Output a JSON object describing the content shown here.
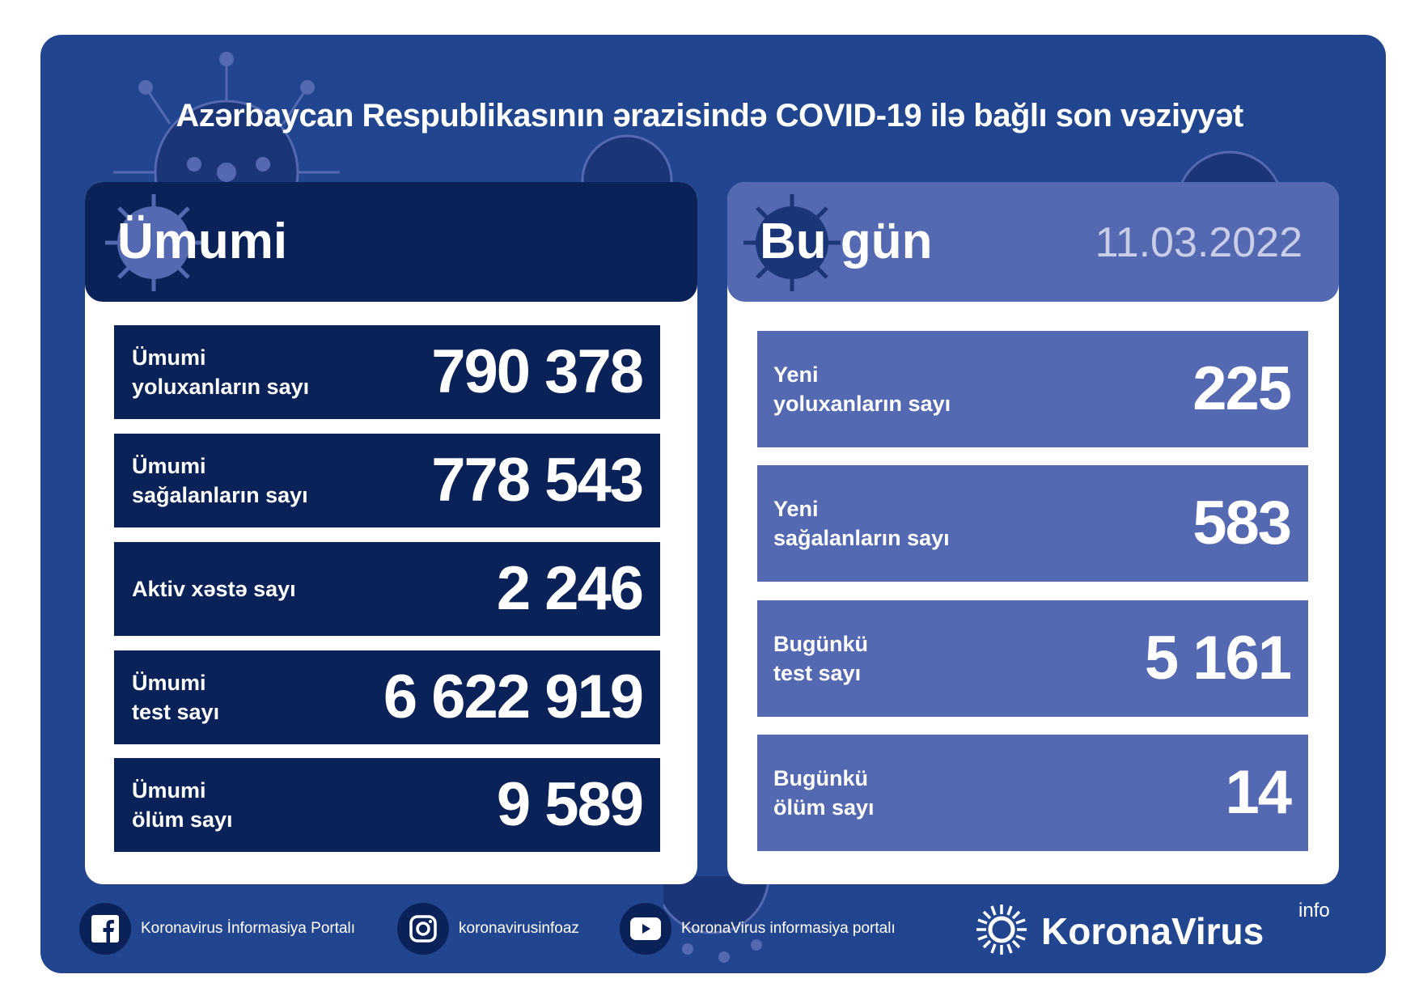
{
  "title": "Azərbaycan Respublikasının ərazisində COVID-19 ilə bağlı son vəziyyət",
  "colors": {
    "background": "#21468f",
    "dark_panel": "#0b2259",
    "light_panel": "#5568b2",
    "date": "#c9cde6"
  },
  "total": {
    "header": "Ümumi",
    "rows": [
      {
        "label_1": "Ümumi",
        "label_2": "yoluxanların sayı",
        "value": "790 378"
      },
      {
        "label_1": "Ümumi",
        "label_2": "sağalanların sayı",
        "value": "778 543"
      },
      {
        "label_1": "Aktiv xəstə sayı",
        "label_2": "",
        "value": "2 246"
      },
      {
        "label_1": "Ümumi",
        "label_2": "test sayı",
        "value": "6 622 919"
      },
      {
        "label_1": "Ümumi",
        "label_2": "ölüm sayı",
        "value": "9 589"
      }
    ]
  },
  "today": {
    "header": "Bu gün",
    "date": "11.03.2022",
    "rows": [
      {
        "label_1": "Yeni",
        "label_2": "yoluxanların sayı",
        "value": "225"
      },
      {
        "label_1": "Yeni",
        "label_2": "sağalanların sayı",
        "value": "583"
      },
      {
        "label_1": "Bugünkü",
        "label_2": "test sayı",
        "value": "5 161"
      },
      {
        "label_1": "Bugünkü",
        "label_2": "ölüm sayı",
        "value": "14"
      }
    ]
  },
  "footer": {
    "facebook": "Koronavirus İnformasiya Portalı",
    "instagram": "koronavirusinfoaz",
    "youtube": "KoronaVirus informasiya portalı",
    "logo": "KoronaVirus",
    "logo_sup": "info"
  }
}
